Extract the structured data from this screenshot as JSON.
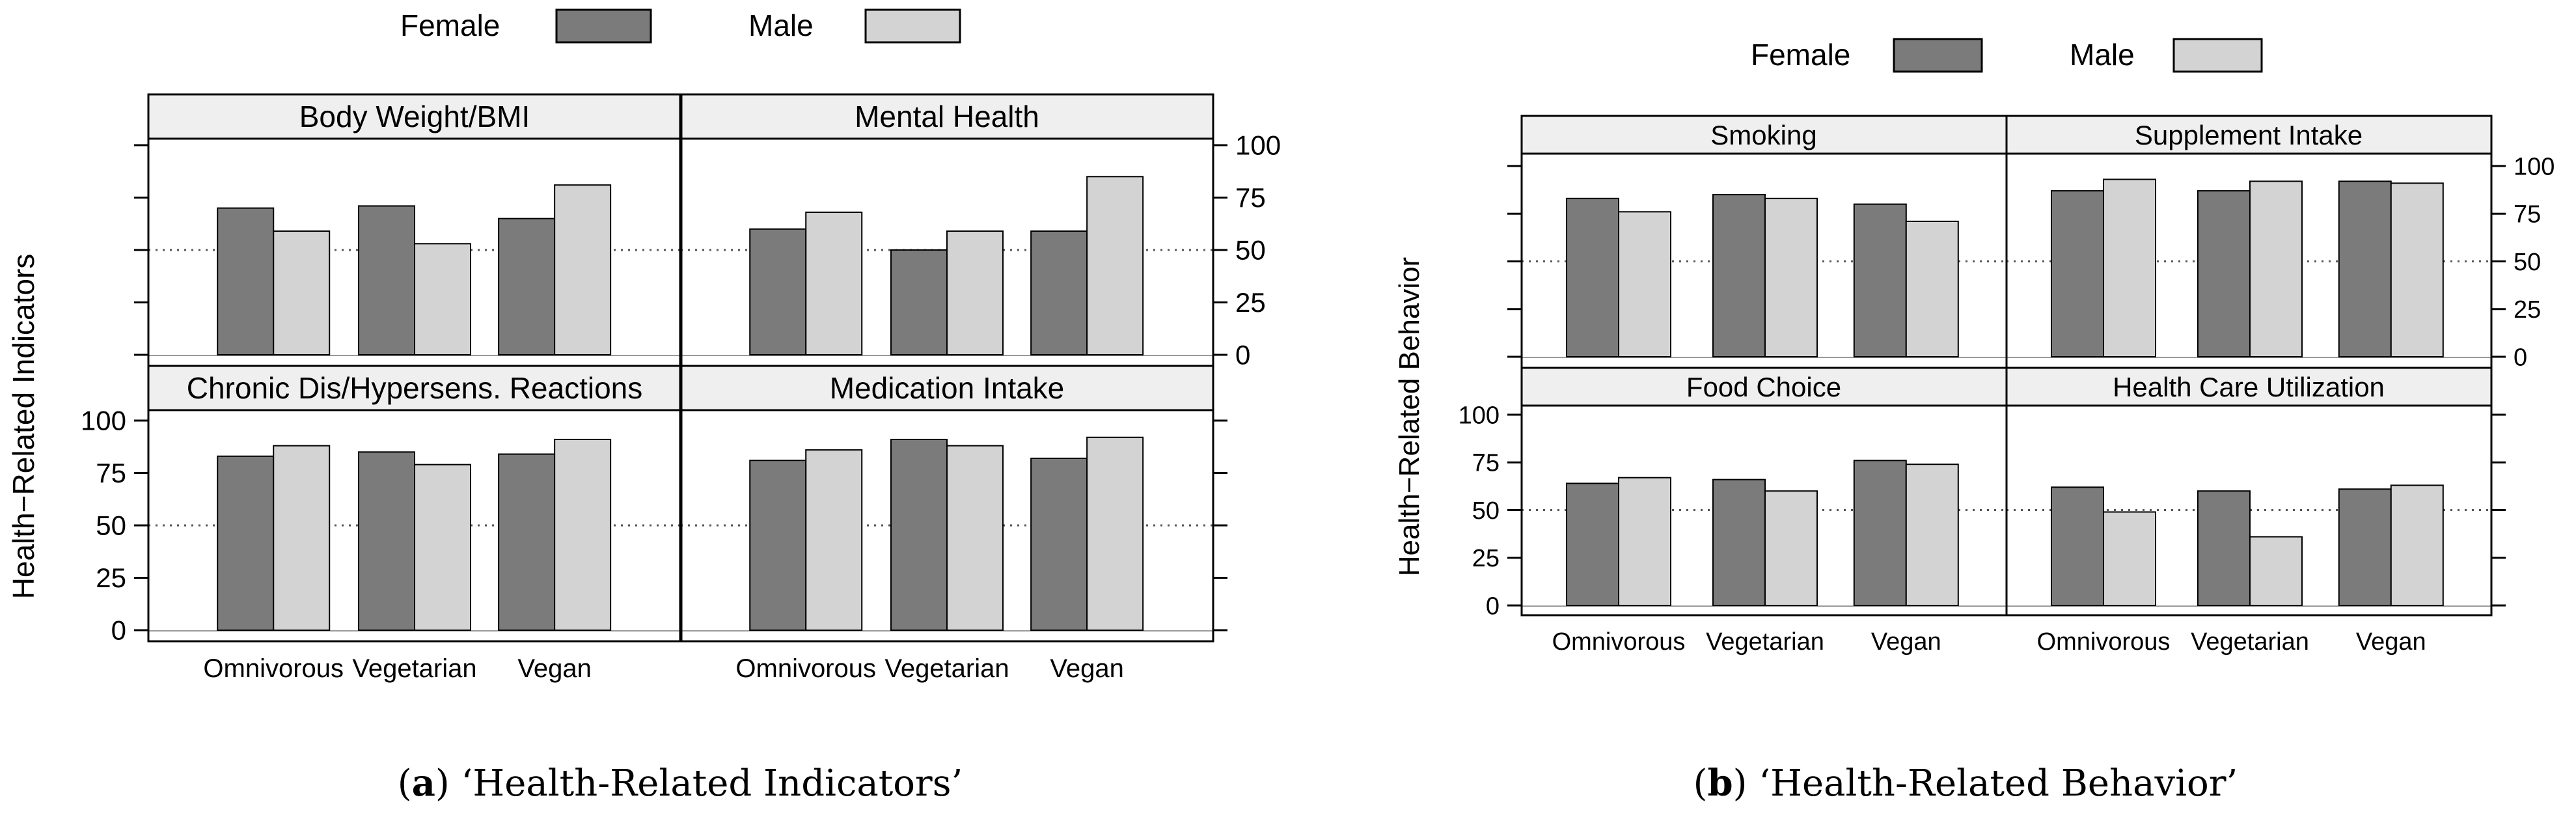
{
  "legend": {
    "female": "Female",
    "male": "Male"
  },
  "colors": {
    "female": "#7b7b7b",
    "male": "#d3d3d3",
    "strip": "#efefef",
    "frame": "#000000",
    "reference": "#555555"
  },
  "captions": {
    "a": {
      "label": "a",
      "open": "(",
      "rest": ") ‘Health-Related Indicators’"
    },
    "b": {
      "label": "b",
      "open": "(",
      "rest": ") ‘Health-Related Behavior’"
    }
  },
  "chart_data": [
    {
      "type": "bar",
      "id": "a",
      "title": "Health-Related Indicators",
      "ylabel": "Health−Related Indicators",
      "categories": [
        "Omnivorous",
        "Vegetarian",
        "Vegan"
      ],
      "ylim": [
        0,
        100
      ],
      "yticks": [
        0,
        25,
        50,
        75,
        100
      ],
      "reference_line": 50,
      "panels": [
        {
          "title": "Body Weight/BMI",
          "series": [
            {
              "name": "Female",
              "values": [
                70,
                71,
                65
              ]
            },
            {
              "name": "Male",
              "values": [
                59,
                53,
                81
              ]
            }
          ]
        },
        {
          "title": "Mental Health",
          "series": [
            {
              "name": "Female",
              "values": [
                60,
                50,
                59
              ]
            },
            {
              "name": "Male",
              "values": [
                68,
                59,
                85
              ]
            }
          ]
        },
        {
          "title": "Chronic Dis/Hypersens. Reactions",
          "series": [
            {
              "name": "Female",
              "values": [
                83,
                85,
                84
              ]
            },
            {
              "name": "Male",
              "values": [
                88,
                79,
                91
              ]
            }
          ]
        },
        {
          "title": "Medication Intake",
          "series": [
            {
              "name": "Female",
              "values": [
                81,
                91,
                82
              ]
            },
            {
              "name": "Male",
              "values": [
                86,
                88,
                92
              ]
            }
          ]
        }
      ]
    },
    {
      "type": "bar",
      "id": "b",
      "title": "Health-Related Behavior",
      "ylabel": "Health−Related Behavior",
      "categories": [
        "Omnivorous",
        "Vegetarian",
        "Vegan"
      ],
      "ylim": [
        0,
        100
      ],
      "yticks": [
        0,
        25,
        50,
        75,
        100
      ],
      "reference_line": 50,
      "panels": [
        {
          "title": "Smoking",
          "series": [
            {
              "name": "Female",
              "values": [
                83,
                85,
                80
              ]
            },
            {
              "name": "Male",
              "values": [
                76,
                83,
                71
              ]
            }
          ]
        },
        {
          "title": "Supplement Intake",
          "series": [
            {
              "name": "Female",
              "values": [
                87,
                87,
                92
              ]
            },
            {
              "name": "Male",
              "values": [
                93,
                92,
                91
              ]
            }
          ]
        },
        {
          "title": "Food Choice",
          "series": [
            {
              "name": "Female",
              "values": [
                64,
                66,
                76
              ]
            },
            {
              "name": "Male",
              "values": [
                67,
                60,
                74
              ]
            }
          ]
        },
        {
          "title": "Health Care Utilization",
          "series": [
            {
              "name": "Female",
              "values": [
                62,
                60,
                61
              ]
            },
            {
              "name": "Male",
              "values": [
                49,
                36,
                63
              ]
            }
          ]
        }
      ]
    }
  ]
}
